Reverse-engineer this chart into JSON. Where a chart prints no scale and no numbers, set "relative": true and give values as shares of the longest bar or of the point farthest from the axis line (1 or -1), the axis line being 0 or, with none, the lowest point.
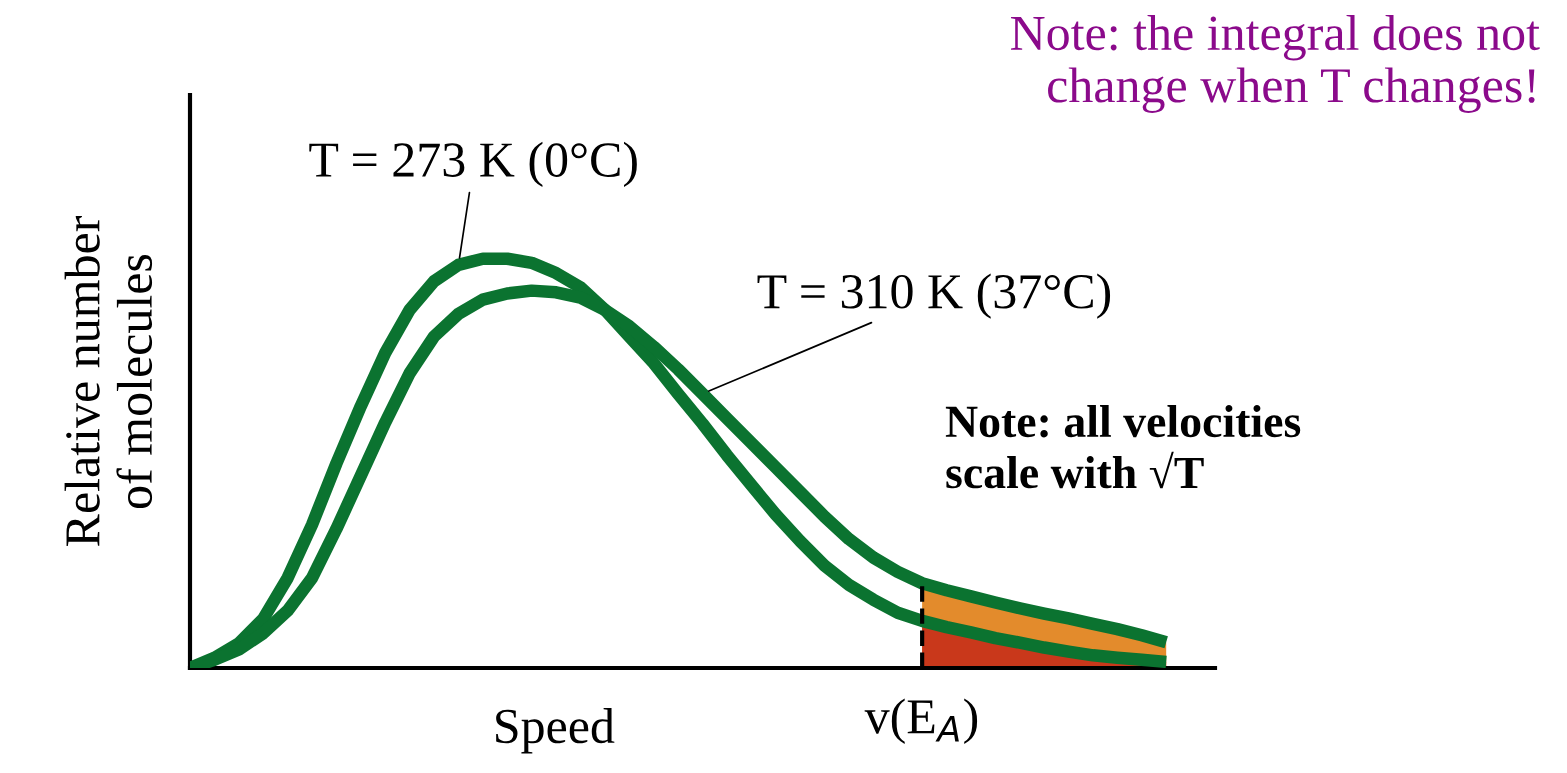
{
  "chart_data": {
    "type": "line",
    "relative": true,
    "xlabel": "Speed",
    "ylabel": "Relative number\nof molecules",
    "categories": [
      null,
      null,
      null,
      null,
      null,
      null,
      null,
      null,
      null,
      null,
      null,
      null,
      null,
      null,
      null,
      null,
      null,
      null,
      null,
      null,
      null,
      null,
      null,
      null,
      null,
      null,
      null,
      null,
      null,
      null,
      null,
      null,
      null,
      null,
      null,
      null,
      null,
      null,
      null,
      null,
      null
    ],
    "series": [
      {
        "type": "area",
        "color": "#e38b2c",
        "values": [
          null,
          null,
          null,
          null,
          null,
          null,
          null,
          null,
          null,
          null,
          null,
          null,
          null,
          null,
          null,
          null,
          null,
          null,
          null,
          null,
          null,
          null,
          null,
          null,
          null,
          null,
          null,
          null,
          null,
          null,
          0.207,
          0.19,
          0.175,
          0.16,
          0.146,
          0.133,
          0.121,
          0.108,
          0.095,
          0.08,
          0.063
        ]
      },
      {
        "type": "area",
        "color": "#c9381b",
        "values": [
          null,
          null,
          null,
          null,
          null,
          null,
          null,
          null,
          null,
          null,
          null,
          null,
          null,
          null,
          null,
          null,
          null,
          null,
          null,
          null,
          null,
          null,
          null,
          null,
          null,
          null,
          null,
          null,
          null,
          null,
          0.115,
          0.1,
          0.087,
          0.073,
          0.062,
          0.05,
          0.04,
          0.031,
          0.025,
          0.02,
          0.015
        ]
      },
      {
        "name": "T = 273 K (0°C)",
        "color": "#0b7330",
        "values": [
          0,
          0.025,
          0.06,
          0.12,
          0.22,
          0.35,
          0.5,
          0.64,
          0.77,
          0.875,
          0.945,
          0.985,
          1,
          1,
          0.99,
          0.965,
          0.93,
          0.875,
          0.81,
          0.745,
          0.67,
          0.597,
          0.52,
          0.447,
          0.375,
          0.31,
          0.25,
          0.203,
          0.167,
          0.135,
          0.115,
          0.1,
          0.087,
          0.073,
          0.062,
          0.05,
          0.04,
          0.031,
          0.025,
          0.02,
          0.015
        ]
      },
      {
        "name": "T = 310 K (37°C)",
        "color": "#0b7330",
        "values": [
          0,
          0.02,
          0.045,
          0.085,
          0.14,
          0.22,
          0.34,
          0.47,
          0.6,
          0.72,
          0.81,
          0.865,
          0.9,
          0.915,
          0.922,
          0.918,
          0.905,
          0.875,
          0.835,
          0.785,
          0.73,
          0.67,
          0.61,
          0.55,
          0.49,
          0.43,
          0.37,
          0.315,
          0.27,
          0.235,
          0.207,
          0.19,
          0.175,
          0.16,
          0.146,
          0.133,
          0.121,
          0.108,
          0.095,
          0.08,
          0.063
        ]
      }
    ],
    "ref_lines": [
      {
        "axis": "x",
        "label": "v(E$_{A}$)",
        "line_style": "dashed",
        "color": "#000000"
      }
    ],
    "annotations": [
      "Note: the integral does not\nchange when T changes!",
      "Note: all velocities\nscale with √T"
    ]
  }
}
